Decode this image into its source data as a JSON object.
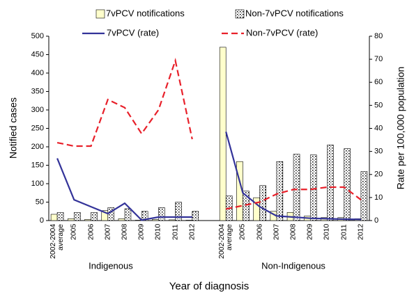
{
  "chart_data": {
    "type": "bar",
    "categories": [
      "2002-2004 average",
      "2005",
      "2006",
      "2007",
      "2008",
      "2009",
      "2010",
      "2011",
      "2012",
      null,
      "2002-2004 average",
      "2005",
      "2006",
      "2007",
      "2008",
      "2009",
      "2010",
      "2011",
      "2012"
    ],
    "series": [
      {
        "name": "7vPCV notifications",
        "type": "bar",
        "color": "#ffffcc",
        "values": [
          17,
          5,
          3,
          27,
          5,
          1,
          3,
          2,
          1,
          null,
          470,
          160,
          62,
          25,
          22,
          12,
          8,
          8,
          5
        ]
      },
      {
        "name": "Non-7vPCV notifications",
        "type": "bar",
        "color": "hatch",
        "values": [
          22,
          22,
          22,
          35,
          32,
          25,
          35,
          50,
          25,
          null,
          67,
          80,
          95,
          160,
          180,
          178,
          205,
          195,
          133
        ]
      },
      {
        "name": "7vPCV (rate)",
        "type": "line",
        "axis": "y2",
        "color": "#333399",
        "values": [
          27,
          9,
          6,
          3,
          7.5,
          0.2,
          1.5,
          1.5,
          1.5,
          null,
          38.5,
          12,
          6,
          2,
          1.5,
          1,
          0.8,
          0.6,
          0.5
        ]
      },
      {
        "name": "Non-7vPCV (rate)",
        "type": "line",
        "axis": "y2",
        "color": "#e8202a",
        "dashed": true,
        "values": [
          33.8,
          32.3,
          32.3,
          52.5,
          49,
          37.7,
          48,
          69.4,
          35.3,
          null,
          5,
          6.5,
          8,
          11.5,
          13.5,
          13.5,
          14.5,
          14.5,
          9
        ]
      }
    ],
    "group_labels": [
      "Indigenous",
      "Non-Indigenous"
    ],
    "xlabel": "Year of diagnosis",
    "ylabel": "Notified cases",
    "y2label": "Rate per 100,000 population",
    "ylim": [
      0,
      500
    ],
    "yticks": [
      0,
      50,
      100,
      150,
      200,
      250,
      300,
      350,
      400,
      450,
      500
    ],
    "y2lim": [
      0,
      80
    ],
    "y2ticks": [
      0,
      10,
      20,
      30,
      40,
      50,
      60,
      70,
      80
    ],
    "legend": "top"
  }
}
